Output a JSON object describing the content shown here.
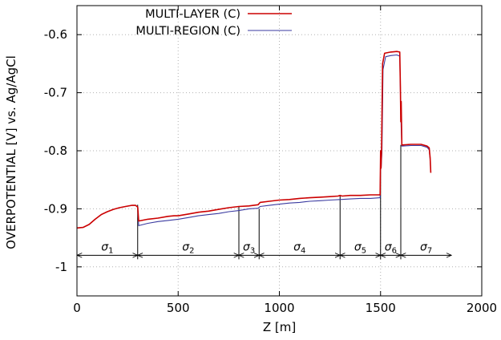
{
  "chart_data": {
    "type": "line",
    "xlabel": "Z [m]",
    "ylabel": "OVERPOTENTIAL [V] vs. Ag/AgCl",
    "xlim": [
      0,
      2000
    ],
    "ylim": [
      -1.05,
      -0.55
    ],
    "x_ticks": [
      0,
      500,
      1000,
      1500,
      2000
    ],
    "y_ticks": [
      -1,
      -0.9,
      -0.8,
      -0.7,
      -0.6
    ],
    "x_tick_labels": [
      "0",
      "500",
      "1000",
      "1500",
      "2000"
    ],
    "y_tick_labels": [
      "-1",
      "-0.9",
      "-0.8",
      "-0.7",
      "-0.6"
    ],
    "grid": true,
    "legend_position": "top-right",
    "series": [
      {
        "name": "MULTI-LAYER (C)",
        "color": "#cc0000",
        "points": [
          [
            0,
            -0.933
          ],
          [
            30,
            -0.932
          ],
          [
            60,
            -0.927
          ],
          [
            90,
            -0.918
          ],
          [
            120,
            -0.91
          ],
          [
            150,
            -0.905
          ],
          [
            180,
            -0.901
          ],
          [
            210,
            -0.898
          ],
          [
            240,
            -0.896
          ],
          [
            270,
            -0.894
          ],
          [
            290,
            -0.894
          ],
          [
            300,
            -0.897
          ],
          [
            305,
            -0.921
          ],
          [
            350,
            -0.918
          ],
          [
            400,
            -0.916
          ],
          [
            450,
            -0.913
          ],
          [
            480,
            -0.912
          ],
          [
            500,
            -0.912
          ],
          [
            550,
            -0.909
          ],
          [
            600,
            -0.906
          ],
          [
            650,
            -0.904
          ],
          [
            700,
            -0.901
          ],
          [
            750,
            -0.898
          ],
          [
            800,
            -0.896
          ],
          [
            850,
            -0.895
          ],
          [
            895,
            -0.893
          ],
          [
            905,
            -0.889
          ],
          [
            950,
            -0.887
          ],
          [
            1000,
            -0.885
          ],
          [
            1050,
            -0.884
          ],
          [
            1100,
            -0.882
          ],
          [
            1150,
            -0.881
          ],
          [
            1200,
            -0.88
          ],
          [
            1250,
            -0.879
          ],
          [
            1290,
            -0.878
          ],
          [
            1300,
            -0.877
          ],
          [
            1310,
            -0.878
          ],
          [
            1350,
            -0.877
          ],
          [
            1400,
            -0.877
          ],
          [
            1450,
            -0.876
          ],
          [
            1498,
            -0.876
          ],
          [
            1500,
            -0.8
          ],
          [
            1502,
            -0.83
          ],
          [
            1505,
            -0.8
          ],
          [
            1510,
            -0.65
          ],
          [
            1520,
            -0.632
          ],
          [
            1550,
            -0.63
          ],
          [
            1580,
            -0.629
          ],
          [
            1595,
            -0.63
          ],
          [
            1598,
            -0.69
          ],
          [
            1600,
            -0.75
          ],
          [
            1602,
            -0.715
          ],
          [
            1605,
            -0.79
          ],
          [
            1650,
            -0.789
          ],
          [
            1700,
            -0.789
          ],
          [
            1730,
            -0.792
          ],
          [
            1740,
            -0.795
          ],
          [
            1745,
            -0.812
          ],
          [
            1748,
            -0.838
          ]
        ]
      },
      {
        "name": "MULTI-REGION (C)",
        "color": "#3a3aa0",
        "points": [
          [
            0,
            -0.933
          ],
          [
            30,
            -0.932
          ],
          [
            60,
            -0.927
          ],
          [
            90,
            -0.918
          ],
          [
            120,
            -0.91
          ],
          [
            150,
            -0.905
          ],
          [
            180,
            -0.901
          ],
          [
            210,
            -0.898
          ],
          [
            240,
            -0.896
          ],
          [
            270,
            -0.894
          ],
          [
            290,
            -0.894
          ],
          [
            300,
            -0.897
          ],
          [
            305,
            -0.929
          ],
          [
            350,
            -0.925
          ],
          [
            400,
            -0.922
          ],
          [
            450,
            -0.92
          ],
          [
            500,
            -0.918
          ],
          [
            550,
            -0.915
          ],
          [
            600,
            -0.912
          ],
          [
            650,
            -0.91
          ],
          [
            700,
            -0.908
          ],
          [
            750,
            -0.905
          ],
          [
            800,
            -0.903
          ],
          [
            850,
            -0.9
          ],
          [
            895,
            -0.899
          ],
          [
            905,
            -0.896
          ],
          [
            950,
            -0.894
          ],
          [
            1000,
            -0.892
          ],
          [
            1050,
            -0.89
          ],
          [
            1100,
            -0.889
          ],
          [
            1150,
            -0.887
          ],
          [
            1200,
            -0.886
          ],
          [
            1250,
            -0.885
          ],
          [
            1300,
            -0.884
          ],
          [
            1350,
            -0.883
          ],
          [
            1400,
            -0.882
          ],
          [
            1450,
            -0.882
          ],
          [
            1498,
            -0.881
          ],
          [
            1500,
            -0.815
          ],
          [
            1503,
            -0.83
          ],
          [
            1507,
            -0.8
          ],
          [
            1512,
            -0.66
          ],
          [
            1525,
            -0.638
          ],
          [
            1550,
            -0.636
          ],
          [
            1580,
            -0.635
          ],
          [
            1595,
            -0.637
          ],
          [
            1598,
            -0.7
          ],
          [
            1602,
            -0.76
          ],
          [
            1605,
            -0.792
          ],
          [
            1650,
            -0.791
          ],
          [
            1700,
            -0.791
          ],
          [
            1730,
            -0.794
          ],
          [
            1740,
            -0.798
          ],
          [
            1745,
            -0.815
          ],
          [
            1748,
            -0.837
          ]
        ]
      }
    ],
    "region_boundaries": [
      300,
      800,
      900,
      1300,
      1500,
      1600
    ],
    "region_boundary_top_y": [
      -0.893,
      -0.896,
      -0.9,
      -0.877,
      -0.8,
      -0.79
    ],
    "region_arrow_y": -0.98,
    "region_arrow_range": [
      0,
      1850
    ],
    "regions": [
      {
        "symbol": "σ",
        "index": "1",
        "x_center": 150
      },
      {
        "symbol": "σ",
        "index": "2",
        "x_center": 550
      },
      {
        "symbol": "σ",
        "index": "3",
        "x_center": 850
      },
      {
        "symbol": "σ",
        "index": "4",
        "x_center": 1100
      },
      {
        "symbol": "σ",
        "index": "5",
        "x_center": 1400
      },
      {
        "symbol": "σ",
        "index": "6",
        "x_center": 1550
      },
      {
        "symbol": "σ",
        "index": "7",
        "x_center": 1725
      }
    ]
  }
}
